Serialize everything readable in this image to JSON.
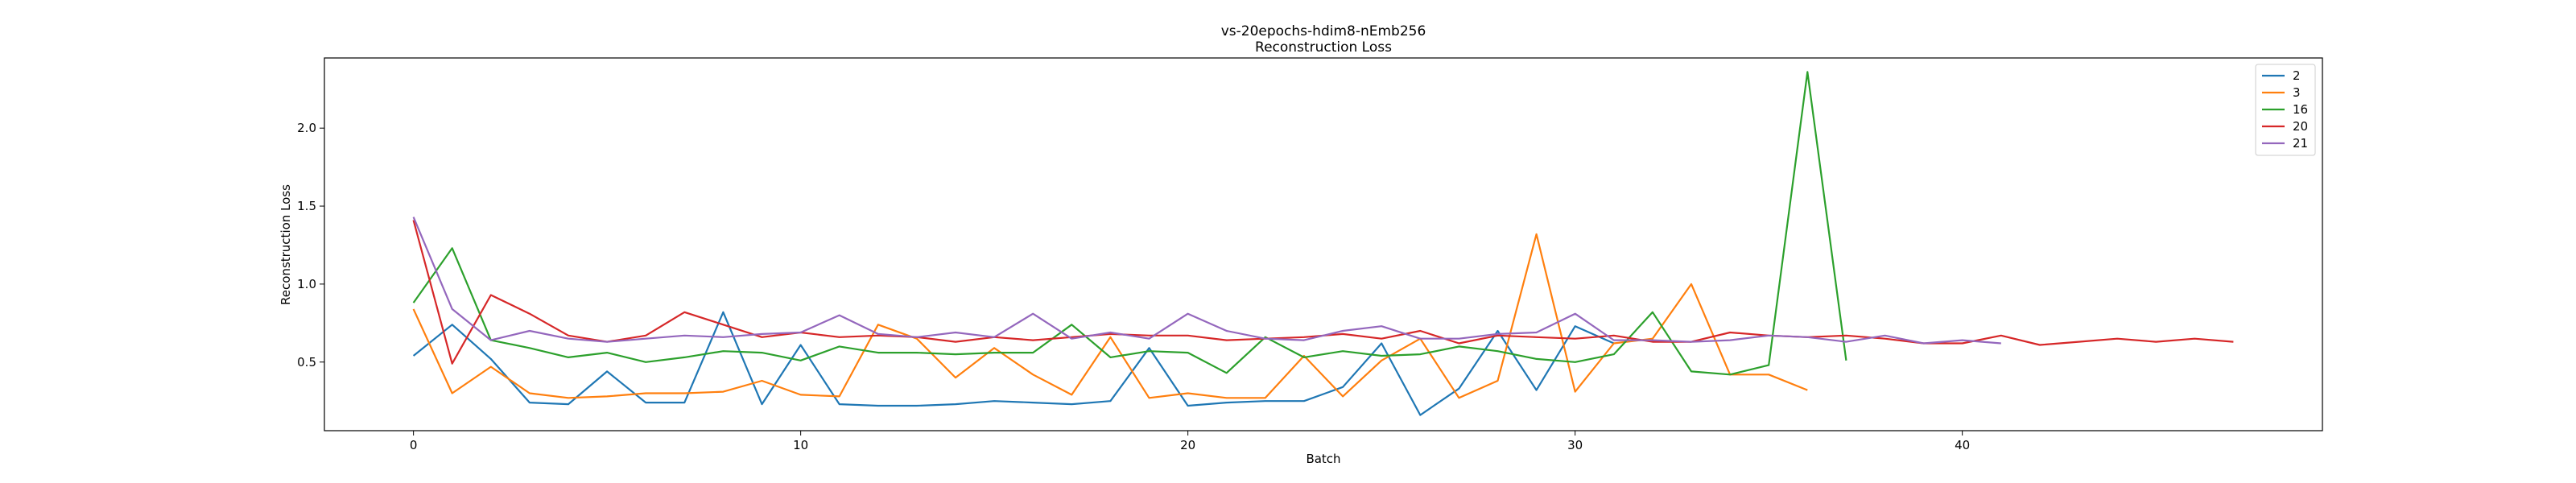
{
  "chart_data": {
    "type": "line",
    "title": "vs-20epochs-hdim8-nEmb256",
    "subtitle": "Reconstruction Loss",
    "xlabel": "Batch",
    "ylabel": "Reconstruction Loss",
    "xlim": [
      -2.3,
      49.3
    ],
    "ylim": [
      0.06,
      2.45
    ],
    "xticks": [
      0,
      10,
      20,
      30,
      40
    ],
    "yticks": [
      0.5,
      1.0,
      1.5,
      2.0
    ],
    "ytick_labels": [
      "0.5",
      "1.0",
      "1.5",
      "2.0"
    ],
    "grid": false,
    "legend_position": "top-right",
    "series": [
      {
        "name": "2",
        "color": "#1f77b4",
        "values": [
          0.54,
          0.74,
          0.52,
          0.24,
          0.23,
          0.44,
          0.24,
          0.24,
          0.82,
          0.23,
          0.61,
          0.23,
          0.22,
          0.22,
          0.23,
          0.25,
          0.24,
          0.23,
          0.25,
          0.59,
          0.22,
          0.24,
          0.25,
          0.25,
          0.34,
          0.62,
          0.16,
          0.33,
          0.7,
          0.32,
          0.73,
          0.62
        ]
      },
      {
        "name": "3",
        "color": "#ff7f0e",
        "values": [
          0.84,
          0.3,
          0.47,
          0.3,
          0.27,
          0.28,
          0.3,
          0.3,
          0.31,
          0.38,
          0.29,
          0.28,
          0.74,
          0.65,
          0.4,
          0.59,
          0.42,
          0.29,
          0.66,
          0.27,
          0.3,
          0.27,
          0.27,
          0.54,
          0.28,
          0.51,
          0.65,
          0.27,
          0.38,
          1.32,
          0.31,
          0.62,
          0.65,
          1.0,
          0.42,
          0.42,
          0.32
        ]
      },
      {
        "name": "16",
        "color": "#2ca02c",
        "values": [
          0.88,
          1.23,
          0.64,
          0.59,
          0.53,
          0.56,
          0.5,
          0.53,
          0.57,
          0.56,
          0.51,
          0.6,
          0.56,
          0.56,
          0.55,
          0.56,
          0.56,
          0.74,
          0.53,
          0.57,
          0.56,
          0.43,
          0.66,
          0.53,
          0.57,
          0.54,
          0.55,
          0.6,
          0.57,
          0.52,
          0.5,
          0.55,
          0.82,
          0.44,
          0.42,
          0.48,
          2.36,
          0.51
        ]
      },
      {
        "name": "20",
        "color": "#d62728",
        "values": [
          1.41,
          0.49,
          0.93,
          0.81,
          0.67,
          0.63,
          0.67,
          0.82,
          0.74,
          0.66,
          0.69,
          0.66,
          0.67,
          0.66,
          0.63,
          0.66,
          0.64,
          0.66,
          0.68,
          0.67,
          0.67,
          0.64,
          0.65,
          0.66,
          0.68,
          0.65,
          0.7,
          0.62,
          0.67,
          0.66,
          0.65,
          0.67,
          0.63,
          0.63,
          0.69,
          0.67,
          0.66,
          0.67,
          0.65,
          0.62,
          0.62,
          0.67,
          0.61,
          0.63,
          0.65,
          0.63,
          0.65,
          0.63
        ]
      },
      {
        "name": "21",
        "color": "#9467bd",
        "values": [
          1.43,
          0.84,
          0.64,
          0.7,
          0.65,
          0.63,
          0.65,
          0.67,
          0.66,
          0.68,
          0.69,
          0.8,
          0.68,
          0.66,
          0.69,
          0.66,
          0.81,
          0.65,
          0.69,
          0.65,
          0.81,
          0.7,
          0.65,
          0.64,
          0.7,
          0.73,
          0.65,
          0.65,
          0.68,
          0.69,
          0.81,
          0.64,
          0.64,
          0.63,
          0.64,
          0.67,
          0.66,
          0.63,
          0.67,
          0.62,
          0.64,
          0.62
        ]
      }
    ]
  }
}
